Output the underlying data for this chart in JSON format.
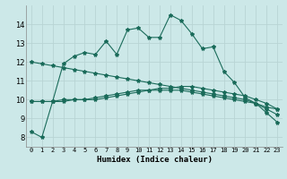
{
  "xlabel": "Humidex (Indice chaleur)",
  "x": [
    0,
    1,
    2,
    3,
    4,
    5,
    6,
    7,
    8,
    9,
    10,
    11,
    12,
    13,
    14,
    15,
    16,
    17,
    18,
    19,
    20,
    21,
    22,
    23
  ],
  "line1": [
    8.3,
    8.0,
    9.9,
    11.9,
    12.3,
    12.5,
    12.4,
    13.1,
    12.4,
    13.7,
    13.8,
    13.3,
    13.3,
    14.5,
    14.2,
    13.5,
    12.7,
    12.8,
    11.5,
    10.9,
    10.1,
    9.8,
    9.3,
    8.8
  ],
  "line2": [
    9.9,
    9.9,
    9.9,
    9.9,
    10.0,
    10.0,
    10.1,
    10.2,
    10.3,
    10.4,
    10.5,
    10.5,
    10.5,
    10.5,
    10.5,
    10.4,
    10.3,
    10.2,
    10.1,
    10.0,
    9.9,
    9.8,
    9.6,
    9.5
  ],
  "line3": [
    12.0,
    11.9,
    11.8,
    11.7,
    11.6,
    11.5,
    11.4,
    11.3,
    11.2,
    11.1,
    11.0,
    10.9,
    10.8,
    10.7,
    10.6,
    10.5,
    10.4,
    10.3,
    10.2,
    10.1,
    10.0,
    9.8,
    9.5,
    9.2
  ],
  "line4": [
    9.9,
    9.9,
    9.9,
    10.0,
    10.0,
    10.0,
    10.0,
    10.1,
    10.2,
    10.3,
    10.4,
    10.5,
    10.6,
    10.6,
    10.7,
    10.7,
    10.6,
    10.5,
    10.4,
    10.3,
    10.2,
    10.0,
    9.8,
    9.5
  ],
  "line_color": "#1a6b5a",
  "bg_color": "#cce8e8",
  "grid_color": "#b8d4d4",
  "ylim": [
    7.5,
    15.0
  ],
  "yticks": [
    8,
    9,
    10,
    11,
    12,
    13,
    14
  ],
  "xlim": [
    -0.5,
    23.5
  ]
}
